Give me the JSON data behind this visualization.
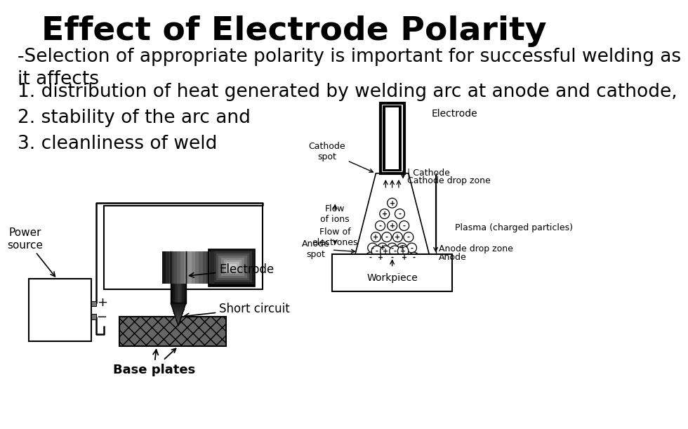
{
  "title": "Effect of Electrode Polarity",
  "title_fontsize": 34,
  "title_fontweight": "bold",
  "bg_color": "#ffffff",
  "text_color": "#000000",
  "bullet_intro": "-Selection of appropriate polarity is important for successful welding as\nit affects",
  "bullets": [
    "1. distribution of heat generated by welding arc at anode and cathode,",
    "2. stability of the arc and",
    "3. cleanliness of weld"
  ],
  "bullet_fontsize": 19,
  "left_diagram_labels": {
    "power_source": "Power\nsource",
    "electrode": "Electrode",
    "short_circuit": "Short circuit",
    "base_plates": "Base plates",
    "plus": "+",
    "minus": "−"
  },
  "right_diagram_labels": {
    "electrode": "Electrode",
    "cathode_spot": "Cathode\nspot",
    "cathode": "Cathode",
    "cathode_drop": "Cathode drop zone",
    "flow_ions": "Flow\nof ions",
    "flow_electrons": "Flow of\nelectrones",
    "plasma": "Plasma (charged particles)",
    "anode_spot": "Anode\nspot",
    "anode_drop": "Anode drop zone",
    "anode": "Anode",
    "workpiece": "Workpiece"
  }
}
